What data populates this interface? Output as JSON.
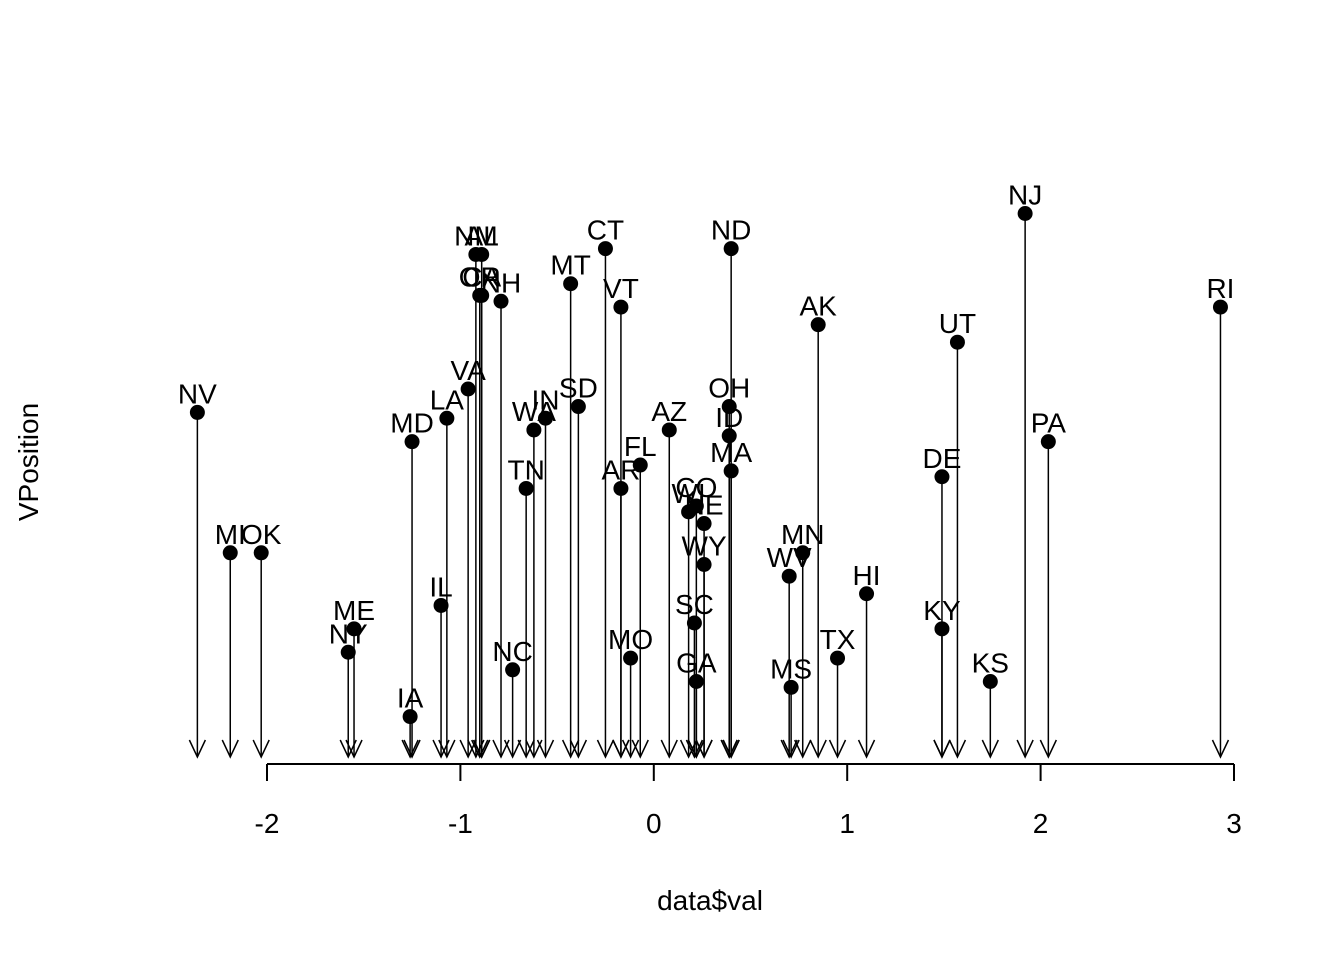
{
  "chart_data": {
    "type": "scatter",
    "xlabel": "data$val",
    "ylabel": "VPosition",
    "xlim": [
      -2.36,
      2.97
    ],
    "x_ticks": [
      "-2",
      "-1",
      "0",
      "1",
      "2",
      "3"
    ],
    "points": [
      {
        "label": "NV",
        "x": -2.36,
        "y": 0.56
      },
      {
        "label": "MI",
        "x": -2.19,
        "y": 0.32
      },
      {
        "label": "OK",
        "x": -2.03,
        "y": 0.32
      },
      {
        "label": "NY",
        "x": -1.58,
        "y": 0.15
      },
      {
        "label": "ME",
        "x": -1.55,
        "y": 0.19
      },
      {
        "label": "MD",
        "x": -1.25,
        "y": 0.51
      },
      {
        "label": "IA",
        "x": -1.26,
        "y": 0.04
      },
      {
        "label": "IL",
        "x": -1.1,
        "y": 0.23
      },
      {
        "label": "LA",
        "x": -1.07,
        "y": 0.55
      },
      {
        "label": "VA",
        "x": -0.96,
        "y": 0.6
      },
      {
        "label": "NM",
        "x": -0.92,
        "y": 0.83
      },
      {
        "label": "AL",
        "x": -0.89,
        "y": 0.83
      },
      {
        "label": "OR",
        "x": -0.9,
        "y": 0.76
      },
      {
        "label": "CA",
        "x": -0.89,
        "y": 0.76
      },
      {
        "label": "NH",
        "x": -0.79,
        "y": 0.75
      },
      {
        "label": "NC",
        "x": -0.73,
        "y": 0.12
      },
      {
        "label": "TN",
        "x": -0.66,
        "y": 0.43
      },
      {
        "label": "WA",
        "x": -0.62,
        "y": 0.53
      },
      {
        "label": "IN",
        "x": -0.56,
        "y": 0.55
      },
      {
        "label": "MT",
        "x": -0.43,
        "y": 0.78
      },
      {
        "label": "SD",
        "x": -0.39,
        "y": 0.57
      },
      {
        "label": "CT",
        "x": -0.25,
        "y": 0.84
      },
      {
        "label": "VT",
        "x": -0.17,
        "y": 0.74
      },
      {
        "label": "AR",
        "x": -0.17,
        "y": 0.43
      },
      {
        "label": "MO",
        "x": -0.12,
        "y": 0.14
      },
      {
        "label": "FL",
        "x": -0.07,
        "y": 0.47
      },
      {
        "label": "AZ",
        "x": 0.08,
        "y": 0.53
      },
      {
        "label": "WI",
        "x": 0.18,
        "y": 0.39
      },
      {
        "label": "CO",
        "x": 0.22,
        "y": 0.4
      },
      {
        "label": "SC",
        "x": 0.21,
        "y": 0.2
      },
      {
        "label": "GA",
        "x": 0.22,
        "y": 0.1
      },
      {
        "label": "NE",
        "x": 0.26,
        "y": 0.37
      },
      {
        "label": "WY",
        "x": 0.26,
        "y": 0.3
      },
      {
        "label": "ND",
        "x": 0.4,
        "y": 0.84
      },
      {
        "label": "OH",
        "x": 0.39,
        "y": 0.57
      },
      {
        "label": "ID",
        "x": 0.39,
        "y": 0.52
      },
      {
        "label": "MA",
        "x": 0.4,
        "y": 0.46
      },
      {
        "label": "WV",
        "x": 0.7,
        "y": 0.28
      },
      {
        "label": "MS",
        "x": 0.71,
        "y": 0.09
      },
      {
        "label": "MN",
        "x": 0.77,
        "y": 0.32
      },
      {
        "label": "AK",
        "x": 0.85,
        "y": 0.71
      },
      {
        "label": "TX",
        "x": 0.95,
        "y": 0.14
      },
      {
        "label": "HI",
        "x": 1.1,
        "y": 0.25
      },
      {
        "label": "DE",
        "x": 1.49,
        "y": 0.45
      },
      {
        "label": "KY",
        "x": 1.49,
        "y": 0.19
      },
      {
        "label": "UT",
        "x": 1.57,
        "y": 0.68
      },
      {
        "label": "KS",
        "x": 1.74,
        "y": 0.1
      },
      {
        "label": "NJ",
        "x": 1.92,
        "y": 0.9
      },
      {
        "label": "PA",
        "x": 2.04,
        "y": 0.51
      },
      {
        "label": "RI",
        "x": 2.93,
        "y": 0.74
      }
    ]
  }
}
